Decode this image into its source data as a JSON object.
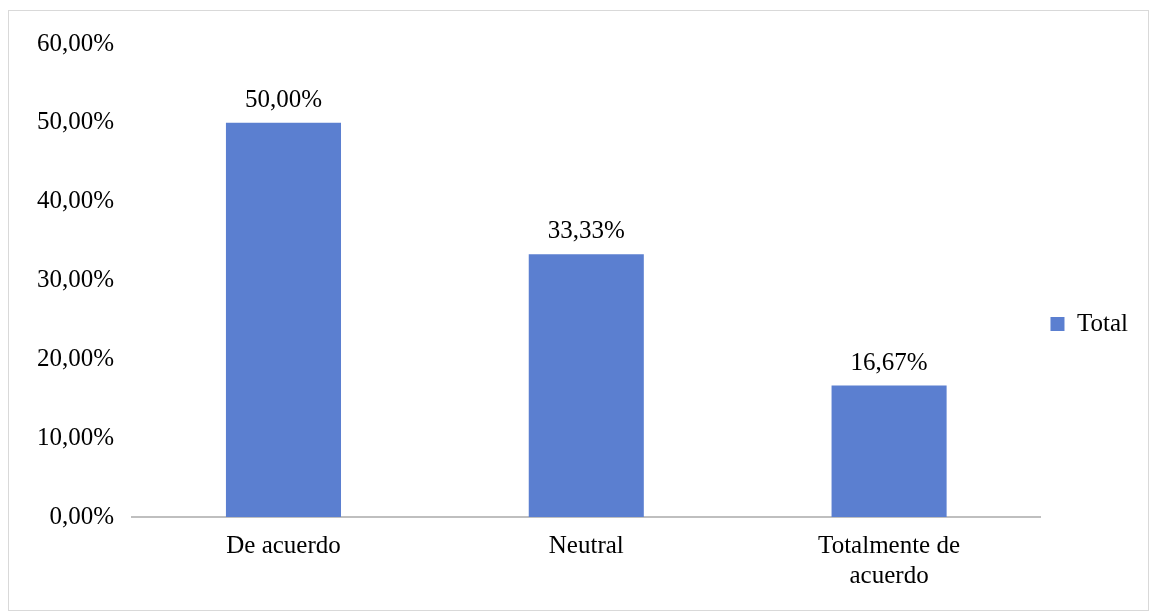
{
  "chart_data": {
    "type": "bar",
    "categories": [
      "De acuerdo",
      "Neutral",
      "Totalmente de acuerdo"
    ],
    "series": [
      {
        "name": "Total",
        "color": "#5b7fd0",
        "values": [
          50,
          33.33,
          16.67
        ],
        "value_labels": [
          "50,00%",
          "33,33%",
          "16,67%"
        ]
      }
    ],
    "ylim": [
      0,
      60
    ],
    "yticks": [
      {
        "value": 0,
        "label": "0,00%"
      },
      {
        "value": 10,
        "label": "10,00%"
      },
      {
        "value": 20,
        "label": "20,00%"
      },
      {
        "value": 30,
        "label": "30,00%"
      },
      {
        "value": 40,
        "label": "40,00%"
      },
      {
        "value": 50,
        "label": "50,00%"
      },
      {
        "value": 60,
        "label": "60,00%"
      }
    ],
    "grid": false,
    "legend": "right"
  }
}
